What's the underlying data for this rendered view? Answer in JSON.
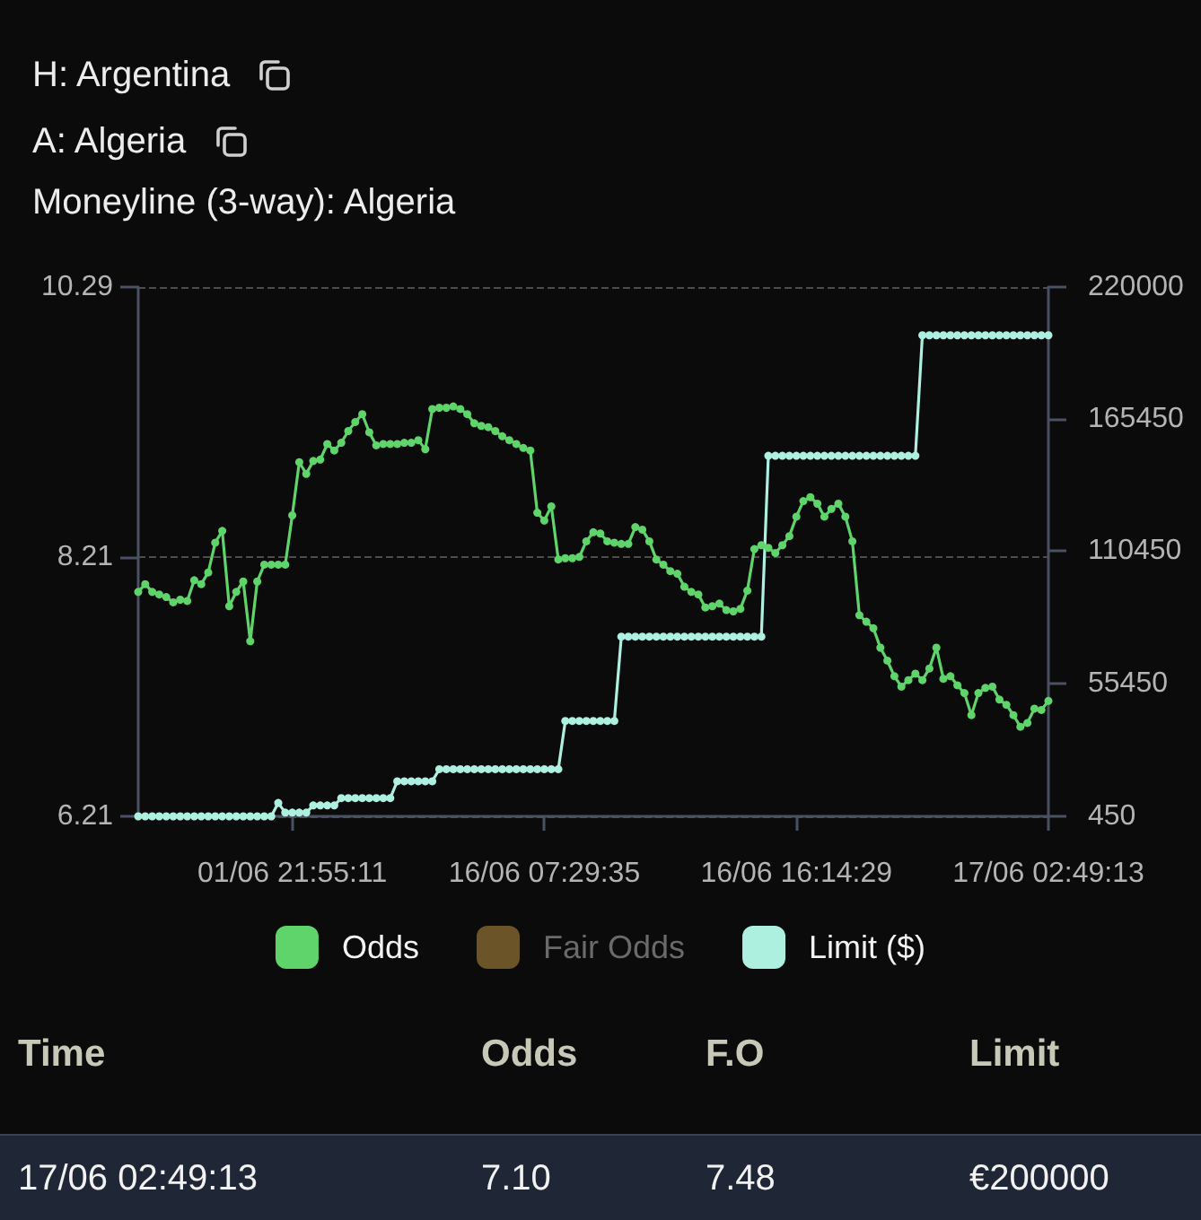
{
  "chart_data": {
    "type": "line",
    "title": "H: Argentina",
    "subtitle": "A: Algeria",
    "annotations": [
      "Moneyline (3-way): Algeria",
      "Time",
      "Odds",
      "F.O",
      "Limit",
      "17/06 02:49:13",
      "7.10",
      "7.48",
      "€200000"
    ],
    "categories": [
      null,
      null,
      null,
      null,
      null,
      null,
      null,
      null,
      null,
      null,
      null,
      null,
      null,
      null,
      null,
      null,
      null,
      null,
      null,
      null,
      null,
      null,
      "01/06 21:55:11",
      null,
      null,
      null,
      null,
      null,
      null,
      null,
      null,
      null,
      null,
      null,
      null,
      null,
      null,
      null,
      null,
      null,
      null,
      null,
      null,
      null,
      null,
      null,
      null,
      null,
      null,
      null,
      null,
      null,
      null,
      null,
      null,
      null,
      null,
      null,
      "16/06 07:29:35",
      null,
      null,
      null,
      null,
      null,
      null,
      null,
      null,
      null,
      null,
      null,
      null,
      null,
      null,
      null,
      null,
      null,
      null,
      null,
      null,
      null,
      null,
      null,
      null,
      null,
      null,
      null,
      null,
      null,
      null,
      null,
      null,
      null,
      null,
      null,
      "16/06 16:14:29",
      null,
      null,
      null,
      null,
      null,
      null,
      null,
      null,
      null,
      null,
      null,
      null,
      null,
      null,
      null,
      null,
      null,
      null,
      null,
      null,
      null,
      null,
      null,
      null,
      null,
      null,
      null,
      null,
      null,
      null,
      null,
      null,
      null,
      null,
      null,
      "17/06 02:49:13"
    ],
    "series": [
      {
        "name": "Odds",
        "color": "#5fd46a",
        "values": [
          7.94,
          8.0,
          7.94,
          7.92,
          7.9,
          7.86,
          7.88,
          7.87,
          8.03,
          8.0,
          8.09,
          8.32,
          8.41,
          7.83,
          7.94,
          8.02,
          7.56,
          8.02,
          8.15,
          8.15,
          8.15,
          8.15,
          8.53,
          8.94,
          8.85,
          8.95,
          8.96,
          9.08,
          9.03,
          9.09,
          9.18,
          9.25,
          9.31,
          9.17,
          9.07,
          9.08,
          9.08,
          9.08,
          9.09,
          9.09,
          9.11,
          9.04,
          9.35,
          9.36,
          9.36,
          9.37,
          9.35,
          9.31,
          9.24,
          9.22,
          9.21,
          9.18,
          9.14,
          9.11,
          9.08,
          9.05,
          9.03,
          8.55,
          8.49,
          8.6,
          8.19,
          8.2,
          8.2,
          8.21,
          8.33,
          8.4,
          8.39,
          8.33,
          8.32,
          8.31,
          8.31,
          8.44,
          8.42,
          8.33,
          8.19,
          8.15,
          8.1,
          8.08,
          7.98,
          7.94,
          7.92,
          7.82,
          7.83,
          7.85,
          7.8,
          7.79,
          7.81,
          7.95,
          8.27,
          8.3,
          8.28,
          8.24,
          8.3,
          8.37,
          8.52,
          8.64,
          8.67,
          8.62,
          8.52,
          8.58,
          8.62,
          8.52,
          8.33,
          7.76,
          7.71,
          7.66,
          7.51,
          7.41,
          7.29,
          7.21,
          7.26,
          7.31,
          7.26,
          7.35,
          7.51,
          7.27,
          7.29,
          7.22,
          7.16,
          6.99,
          7.16,
          7.2,
          7.21,
          7.11,
          7.07,
          6.99,
          6.9,
          6.93,
          7.04,
          7.03,
          7.1
        ]
      },
      {
        "name": "Fair Odds",
        "color": "#6b5428",
        "values": [
          null,
          null,
          null,
          null,
          null,
          null,
          null,
          null,
          null,
          null,
          null,
          null,
          null,
          null,
          null,
          null,
          null,
          null,
          null,
          null,
          null,
          null,
          null,
          null,
          null,
          null,
          null,
          null,
          null,
          null,
          null,
          null,
          null,
          null,
          null,
          null,
          null,
          null,
          null,
          null,
          null,
          null,
          null,
          null,
          null,
          null,
          null,
          null,
          null,
          null,
          null,
          null,
          null,
          null,
          null,
          null,
          null,
          null,
          null,
          null,
          null,
          null,
          null,
          null,
          null,
          null,
          null,
          null,
          null,
          null,
          null,
          null,
          null,
          null,
          null,
          null,
          null,
          null,
          null,
          null,
          null,
          null,
          null,
          null,
          null,
          null,
          null,
          null,
          null,
          null,
          null,
          null,
          null,
          null,
          null,
          null,
          null,
          null,
          null,
          null,
          null,
          null,
          null,
          null,
          null,
          null,
          null,
          null,
          null,
          null,
          null,
          null,
          null,
          null,
          null,
          null,
          null,
          null,
          null,
          null,
          null,
          null,
          null,
          null,
          null,
          null,
          null,
          null,
          null,
          null,
          null
        ]
      },
      {
        "name": "Limit ($)",
        "color": "#aef0e0",
        "axis": "y2",
        "values": [
          450,
          450,
          450,
          450,
          450,
          450,
          450,
          450,
          450,
          450,
          450,
          450,
          450,
          450,
          450,
          450,
          450,
          450,
          450,
          450,
          6000,
          2000,
          2000,
          2000,
          2000,
          5000,
          5000,
          5000,
          5000,
          8000,
          8000,
          8000,
          8000,
          8000,
          8000,
          8000,
          8000,
          15000,
          15000,
          15000,
          15000,
          15000,
          15000,
          20000,
          20000,
          20000,
          20000,
          20000,
          20000,
          20000,
          20000,
          20000,
          20000,
          20000,
          20000,
          20000,
          20000,
          20000,
          20000,
          20000,
          20000,
          40000,
          40000,
          40000,
          40000,
          40000,
          40000,
          40000,
          40000,
          75000,
          75000,
          75000,
          75000,
          75000,
          75000,
          75000,
          75000,
          75000,
          75000,
          75000,
          75000,
          75000,
          75000,
          75000,
          75000,
          75000,
          75000,
          75000,
          75000,
          75000,
          150000,
          150000,
          150000,
          150000,
          150000,
          150000,
          150000,
          150000,
          150000,
          150000,
          150000,
          150000,
          150000,
          150000,
          150000,
          150000,
          150000,
          150000,
          150000,
          150000,
          150000,
          150000,
          200000,
          200000,
          200000,
          200000,
          200000,
          200000,
          200000,
          200000,
          200000,
          200000,
          200000,
          200000,
          200000,
          200000,
          200000,
          200000,
          200000,
          200000,
          200000
        ]
      }
    ],
    "ylim": [
      6.21,
      10.29
    ],
    "yticks": [
      6.21,
      8.21,
      10.29
    ],
    "y2lim": [
      450,
      220000
    ],
    "y2ticks": [
      450,
      55450,
      110450,
      165450,
      220000
    ],
    "grid": "y",
    "legend": "bottom",
    "marker": "circle"
  }
}
